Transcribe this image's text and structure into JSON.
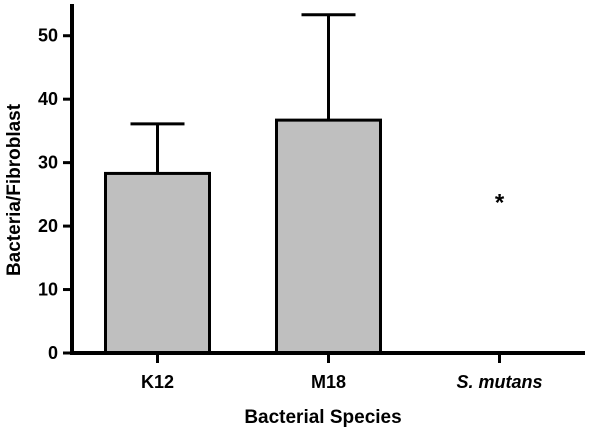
{
  "chart_data": {
    "type": "bar",
    "title": "",
    "xlabel": "Bacterial Species",
    "ylabel": "Bacteria/Fibroblast",
    "categories": [
      "K12",
      "M18",
      "S. mutans"
    ],
    "italic_categories": [
      false,
      false,
      true
    ],
    "values": [
      28.3,
      36.7,
      0
    ],
    "error_upper": [
      36.1,
      53.3,
      0
    ],
    "annotations": [
      {
        "category": "S. mutans",
        "text": "*",
        "y": 24
      }
    ],
    "ylim": [
      0,
      55
    ],
    "yticks": [
      0,
      10,
      20,
      30,
      40,
      50
    ],
    "grid": false,
    "legend": "none",
    "colors": {
      "bar_fill": "#bfbfbf",
      "bar_stroke": "#000000",
      "axis": "#000000"
    }
  }
}
